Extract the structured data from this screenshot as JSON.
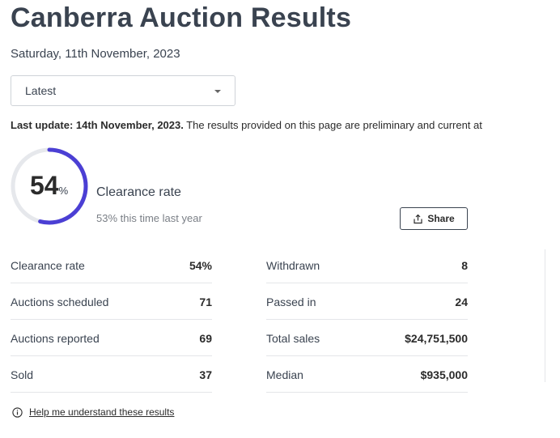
{
  "page": {
    "title": "Canberra Auction Results",
    "date": "Saturday, 11th November, 2023"
  },
  "filter": {
    "selected": "Latest"
  },
  "update": {
    "label": "Last update: 14th November, 2023.",
    "text": " The results provided on this page are preliminary and current at"
  },
  "clearance": {
    "value": "54",
    "percent_sign": "%",
    "fraction": 0.54,
    "label": "Clearance rate",
    "last_year": "53% this time last year",
    "ring_color": "#4b3fd4",
    "track_color": "#e6e8ec"
  },
  "share": {
    "label": "Share"
  },
  "stats": {
    "left": [
      {
        "label": "Clearance rate",
        "value": "54%"
      },
      {
        "label": "Auctions scheduled",
        "value": "71"
      },
      {
        "label": "Auctions reported",
        "value": "69"
      },
      {
        "label": "Sold",
        "value": "37"
      }
    ],
    "right": [
      {
        "label": "Withdrawn",
        "value": "8"
      },
      {
        "label": "Passed in",
        "value": "24"
      },
      {
        "label": "Total sales",
        "value": "$24,751,500"
      },
      {
        "label": "Median",
        "value": "$935,000"
      }
    ]
  },
  "help": {
    "link": "Help me understand these results"
  }
}
